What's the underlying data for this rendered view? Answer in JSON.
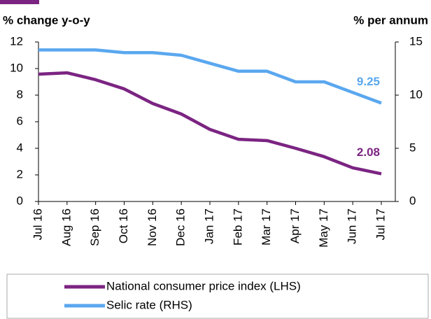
{
  "chart_data": {
    "type": "line",
    "y_label": "% change y-o-y",
    "y2_label": "% per annum",
    "categories": [
      "Jul 16",
      "Aug 16",
      "Sep 16",
      "Oct 16",
      "Nov 16",
      "Dec 16",
      "Jan 17",
      "Feb 17",
      "Mar 17",
      "Apr 17",
      "May 17",
      "Jun 17",
      "Jul 17"
    ],
    "series": [
      {
        "name": "National consumer price index (LHS)",
        "color": "#7b2482",
        "values": [
          9.58,
          9.68,
          9.16,
          8.47,
          7.37,
          6.58,
          5.42,
          4.68,
          4.58,
          4.0,
          3.37,
          2.53,
          2.08
        ]
      },
      {
        "name": "Selic rate (RHS)",
        "color": "#5aa7ef",
        "axis": "y2",
        "values": [
          14.25,
          14.25,
          14.25,
          14.0,
          14.0,
          13.75,
          13.0,
          12.25,
          12.25,
          11.25,
          11.25,
          10.25,
          9.25
        ]
      }
    ],
    "ylim": [
      0,
      12
    ],
    "yticks": [
      0,
      2,
      4,
      6,
      8,
      10,
      12
    ],
    "y2lim": [
      0,
      15
    ],
    "y2ticks": [
      0,
      5,
      10,
      15
    ],
    "legend": "bottom"
  }
}
